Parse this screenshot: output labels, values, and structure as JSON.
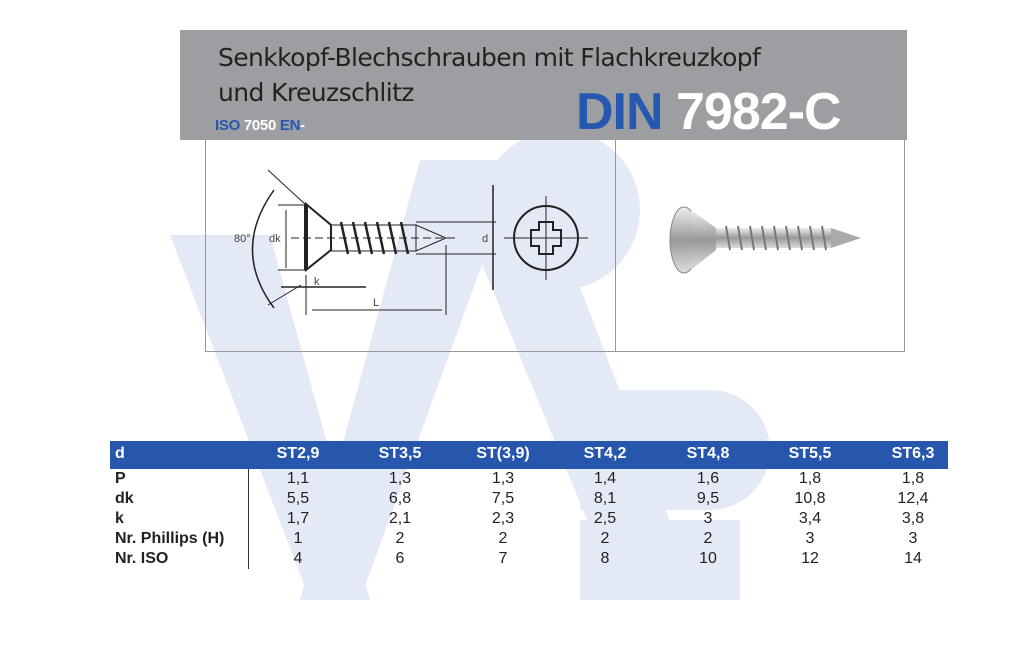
{
  "header": {
    "title_line1": "Senkkopf-Blechschrauben mit Flachkreuzkopf",
    "title_line2": "und Kreuzschlitz",
    "iso_prefix": "ISO",
    "iso_number": "7050",
    "en_prefix": "EN",
    "en_number": "-",
    "din_prefix": "DIN",
    "din_number": "7982-C"
  },
  "drawing": {
    "angle_label": "80°",
    "dk_label": "dk",
    "k_label": "k",
    "l_label": "L",
    "d_label": "d"
  },
  "colors": {
    "header_gray": "#9d9ea2",
    "brand_blue": "#2756ad",
    "watermark": "#e3e9f4"
  },
  "table": {
    "header_label": "d",
    "columns": [
      "ST2,9",
      "ST3,5",
      "ST(3,9)",
      "ST4,2",
      "ST4,8",
      "ST5,5",
      "ST6,3"
    ],
    "rows": [
      {
        "label": "P",
        "values": [
          "1,1",
          "1,3",
          "1,3",
          "1,4",
          "1,6",
          "1,8",
          "1,8"
        ]
      },
      {
        "label": "dk",
        "values": [
          "5,5",
          "6,8",
          "7,5",
          "8,1",
          "9,5",
          "10,8",
          "12,4"
        ]
      },
      {
        "label": "k",
        "values": [
          "1,7",
          "2,1",
          "2,3",
          "2,5",
          "3",
          "3,4",
          "3,8"
        ]
      },
      {
        "label": "Nr. Phillips (H)",
        "values": [
          "1",
          "2",
          "2",
          "2",
          "2",
          "3",
          "3"
        ]
      },
      {
        "label": "Nr. ISO",
        "values": [
          "4",
          "6",
          "7",
          "8",
          "10",
          "12",
          "14"
        ]
      }
    ]
  }
}
